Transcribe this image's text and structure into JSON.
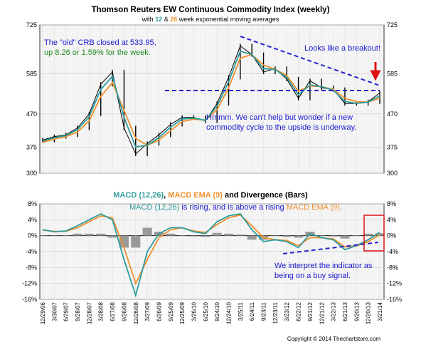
{
  "header": {
    "title": "Thomson Reuters EW Continuous Commodity Index (weekly)",
    "subtitle_prefix": "with ",
    "subtitle_n1": "12",
    "subtitle_mid": " & ",
    "subtitle_n2": "26",
    "subtitle_suffix": " week exponential moving averages"
  },
  "annotations": {
    "crb_line1": "The \"old\" CRB closed at 533.95,",
    "crb_line2": "up 8.26 or 1.59% for the week.",
    "breakout": "Looks like a breakout!",
    "cycle_line1": "Hmmm.  We can't help but wonder if a new",
    "cycle_line2": "commodity cycle to the upside is underway.",
    "macd_rising_a": "MACD (12,26)",
    "macd_rising_b": " is rising, and is above a rising ",
    "macd_rising_c": "MACD EMA (9)",
    "macd_rising_d": ".",
    "buy_line1": "We interpret the indicator as",
    "buy_line2": "being on a buy signal."
  },
  "macd_title": {
    "part1": "MACD (12,26)",
    "part2": ", ",
    "part3": "MACD EMA (9)",
    "part4": " and Divergence (Bars)"
  },
  "copyright": "Copyright © 2014 Thechartstore.com",
  "colors": {
    "price": "#000000",
    "ema12": "#2e9c9c",
    "ema26": "#f0902c",
    "macd": "#2e9c9c",
    "signal": "#f0902c",
    "divergence": "#999999",
    "annotation_blue": "#1a1ad0",
    "annotation_green": "#1f8a1f",
    "trend_line": "#2222cc",
    "arrow": "#dd1111",
    "box": "#dd1111",
    "panel_bg": "#f4f4f4"
  },
  "chart_data": [
    {
      "type": "line",
      "title": "Thomson Reuters EW Continuous Commodity Index (weekly)",
      "x": [
        "12/29/06",
        "3/30/07",
        "6/29/07",
        "9/28/07",
        "12/28/07",
        "3/28/08",
        "6/27/08",
        "9/26/08",
        "12/26/08",
        "3/27/09",
        "6/26/09",
        "9/25/09",
        "12/25/09",
        "3/26/10",
        "6/25/10",
        "9/24/10",
        "12/24/10",
        "3/25/11",
        "6/24/11",
        "9/23/11",
        "12/23/11",
        "3/23/12",
        "6/22/12",
        "9/21/12",
        "12/21/12",
        "3/22/13",
        "6/21/13",
        "9/20/13",
        "12/20/13",
        "3/21/14"
      ],
      "ylim": [
        300,
        725
      ],
      "yticks": [
        300,
        375,
        470,
        585,
        725
      ],
      "ytick_labels": [
        "300",
        "375",
        "470",
        "585",
        "725"
      ],
      "series": [
        {
          "name": "",
          "style": "price-bars",
          "values": [
            395,
            405,
            410,
            430,
            470,
            555,
            590,
            430,
            355,
            385,
            410,
            440,
            460,
            460,
            450,
            500,
            575,
            665,
            640,
            590,
            600,
            570,
            515,
            565,
            545,
            540,
            500,
            500,
            505,
            530
          ]
        },
        {
          "name": "12",
          "values": [
            392,
            402,
            408,
            425,
            462,
            540,
            578,
            460,
            375,
            380,
            402,
            432,
            455,
            458,
            452,
            492,
            562,
            650,
            640,
            600,
            597,
            575,
            525,
            553,
            548,
            538,
            506,
            500,
            504,
            522
          ]
        },
        {
          "name": "26",
          "values": [
            388,
            398,
            405,
            418,
            450,
            520,
            560,
            480,
            400,
            380,
            395,
            422,
            448,
            455,
            452,
            482,
            545,
            630,
            640,
            610,
            598,
            580,
            535,
            550,
            548,
            540,
            515,
            505,
            504,
            515
          ]
        }
      ]
    },
    {
      "type": "line",
      "title": "MACD (12,26), MACD EMA (9) and Divergence (Bars)",
      "x": [
        "12/29/06",
        "3/30/07",
        "6/29/07",
        "9/28/07",
        "12/28/07",
        "3/28/08",
        "6/27/08",
        "9/26/08",
        "12/26/08",
        "3/27/09",
        "6/26/09",
        "9/25/09",
        "12/25/09",
        "3/26/10",
        "6/25/10",
        "9/24/10",
        "12/24/10",
        "3/25/11",
        "6/24/11",
        "9/23/11",
        "12/23/11",
        "3/23/12",
        "6/22/12",
        "9/21/12",
        "12/21/12",
        "3/22/13",
        "6/21/13",
        "9/20/13",
        "12/20/13",
        "3/21/14"
      ],
      "ylim": [
        -16,
        8
      ],
      "yticks": [
        -16,
        -12,
        -8,
        -4,
        0,
        4,
        8
      ],
      "ytick_labels": [
        "-16%",
        "-12%",
        "-8%",
        "-4%",
        "0%",
        "4%",
        "8%"
      ],
      "series": [
        {
          "name": "MACD (12,26)",
          "values": [
            1.5,
            1.0,
            1.2,
            2.5,
            4.0,
            5.5,
            4.0,
            -6.0,
            -15.0,
            -4.0,
            0.5,
            2.0,
            2.0,
            1.0,
            0.5,
            3.5,
            5.0,
            5.5,
            1.5,
            -1.5,
            -1.0,
            -1.5,
            -3.0,
            0.5,
            -0.5,
            -1.0,
            -3.5,
            -2.5,
            -1.0,
            0.8
          ]
        },
        {
          "name": "MACD EMA (9)",
          "values": [
            1.4,
            1.1,
            1.1,
            2.0,
            3.5,
            5.0,
            4.5,
            -3.0,
            -12.0,
            -6.0,
            -0.5,
            1.5,
            2.0,
            1.2,
            0.8,
            2.8,
            4.5,
            5.2,
            2.5,
            -0.5,
            -1.0,
            -1.2,
            -2.5,
            -0.5,
            -0.5,
            -0.8,
            -2.8,
            -2.6,
            -1.5,
            0.2
          ]
        },
        {
          "name": "Divergence (Bars)",
          "values": [
            0.1,
            -0.1,
            0.1,
            0.5,
            0.5,
            0.5,
            -0.5,
            -3.0,
            -3.0,
            2.0,
            1.0,
            0.5,
            0.0,
            -0.2,
            -0.3,
            0.7,
            0.5,
            0.3,
            -1.0,
            -1.0,
            0.0,
            -0.3,
            -0.5,
            1.0,
            0.0,
            -0.2,
            -0.7,
            0.1,
            0.5,
            0.6
          ]
        }
      ]
    }
  ]
}
